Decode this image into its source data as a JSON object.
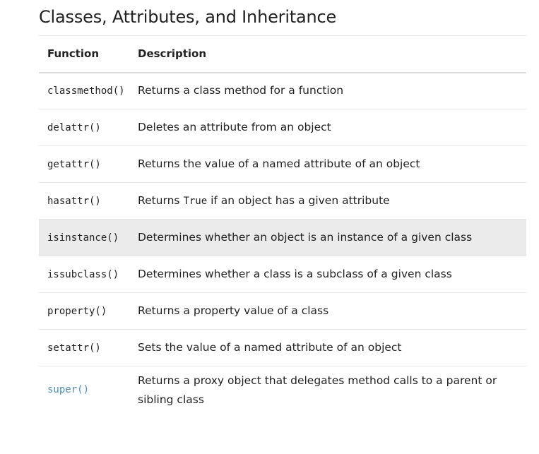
{
  "heading": "Classes, Attributes, and Inheritance",
  "table": {
    "headers": {
      "function": "Function",
      "description": "Description"
    },
    "rows": [
      {
        "function": "classmethod()",
        "description": "Returns a class method for a function"
      },
      {
        "function": "delattr()",
        "description": "Deletes an attribute from an object"
      },
      {
        "function": "getattr()",
        "description": "Returns the value of a named attribute of an object"
      },
      {
        "function": "hasattr()",
        "description_before": "Returns",
        "description_code": "True",
        "description_after": "if an object has a given attribute"
      },
      {
        "function": "isinstance()",
        "description": "Determines whether an object is an instance of a given class",
        "highlighted": true
      },
      {
        "function": "issubclass()",
        "description": "Determines whether a class is a subclass of a given class"
      },
      {
        "function": "property()",
        "description": "Returns a property value of a class"
      },
      {
        "function": "setattr()",
        "description": "Sets the value of a named attribute of an object"
      },
      {
        "function": "super()",
        "description": "Returns a proxy object that delegates method calls to a parent or sibling class",
        "is_link": true
      }
    ]
  },
  "colors": {
    "link": "#4a90c4",
    "highlight_row": "#ebebeb"
  }
}
